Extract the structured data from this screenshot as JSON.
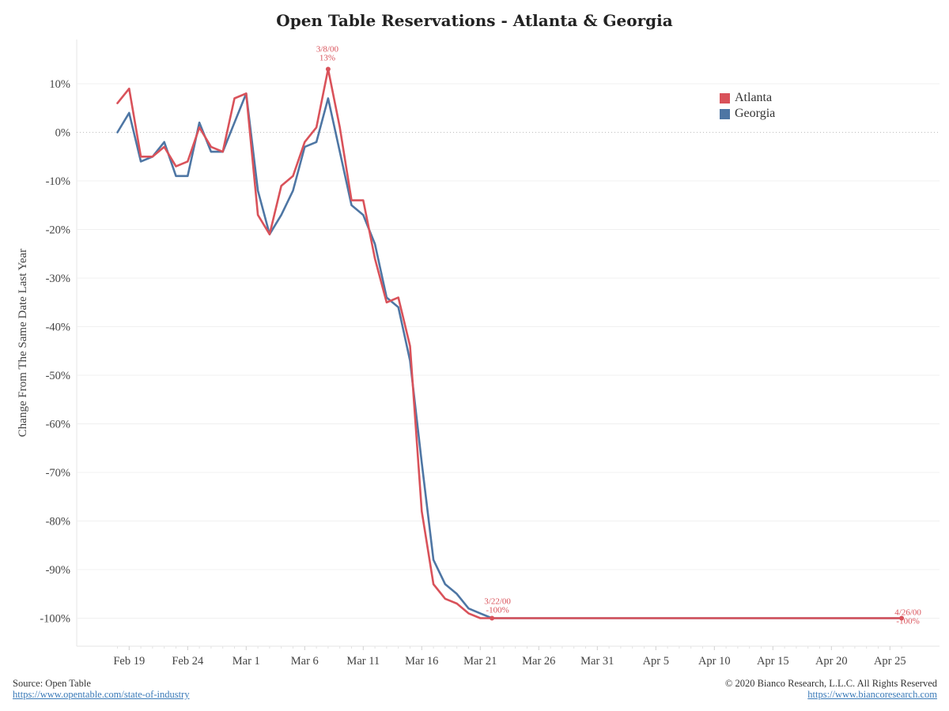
{
  "chart_data": {
    "type": "line",
    "title": "Open Table Reservations - Atlanta & Georgia",
    "ylabel": "Change From The Same Date Last Year",
    "xlabel": "",
    "ylim": [
      -106,
      18
    ],
    "yticks": [
      10,
      0,
      -10,
      -20,
      -30,
      -40,
      -50,
      -60,
      -70,
      -80,
      -90,
      -100
    ],
    "ytick_labels": [
      "10%",
      "0%",
      "-10%",
      "-20%",
      "-30%",
      "-40%",
      "-50%",
      "-60%",
      "-70%",
      "-80%",
      "-90%",
      "-100%"
    ],
    "xticks": [
      "Feb 19",
      "Feb 24",
      "Mar 1",
      "Mar 6",
      "Mar 11",
      "Mar 16",
      "Mar 21",
      "Mar 26",
      "Mar 31",
      "Apr 5",
      "Apr 10",
      "Apr 15",
      "Apr 20",
      "Apr 25"
    ],
    "x_start": "Feb 18",
    "x_end": "Apr 26",
    "grid": "horizontal",
    "legend_position": "top-right",
    "series": [
      {
        "name": "Atlanta",
        "color": "#d9525a",
        "values": [
          6,
          9,
          -5,
          -5,
          -3,
          -7,
          -6,
          1,
          -3,
          -4,
          7,
          8,
          -17,
          -21,
          -11,
          -9,
          -2,
          1,
          13,
          1,
          -14,
          -14,
          -26,
          -35,
          -34,
          -44,
          -78,
          -93,
          -96,
          -97,
          -99,
          -100,
          -100,
          -100,
          -100,
          -100,
          -100,
          -100,
          -100,
          -100,
          -100,
          -100,
          -100,
          -100,
          -100,
          -100,
          -100,
          -100,
          -100,
          -100,
          -100,
          -100,
          -100,
          -100,
          -100,
          -100,
          -100,
          -100,
          -100,
          -100,
          -100,
          -100,
          -100,
          -100,
          -100,
          -100,
          -100,
          -100
        ]
      },
      {
        "name": "Georgia",
        "color": "#4e76a4",
        "values": [
          0,
          4,
          -6,
          -5,
          -2,
          -9,
          -9,
          2,
          -4,
          -4,
          2,
          8,
          -12,
          -21,
          -17,
          -12,
          -3,
          -2,
          7,
          -4,
          -15,
          -17,
          -23,
          -34,
          -36,
          -47,
          -68,
          -88,
          -93,
          -95,
          -98,
          -99,
          -100,
          -100,
          -100,
          -100,
          -100,
          -100,
          -100,
          -100,
          -100,
          -100,
          -100,
          -100,
          -100,
          -100,
          -100,
          -100,
          -100,
          -100,
          -100,
          -100,
          -100,
          -100,
          -100,
          -100,
          -100,
          -100,
          -100,
          -100,
          -100,
          -100,
          -100,
          -100,
          -100,
          -100,
          -100,
          -100
        ]
      }
    ],
    "annotations": [
      {
        "series": "Atlanta",
        "date": "3/8/00",
        "value_label": "13%",
        "color": "#d9525a"
      },
      {
        "series": "Georgia",
        "date": "3/22/00",
        "value_label": "-100%",
        "color": "#d9525a"
      },
      {
        "series": "Atlanta",
        "date": "4/26/00",
        "value_label": "-100%",
        "color": "#d9525a"
      }
    ]
  },
  "footer": {
    "source": "Source: Open Table",
    "source_url": "https://www.opentable.com/state-of-industry",
    "copyright": "© 2020 Bianco Research, L.L.C. All Rights Reserved",
    "site_url": "https://www.biancoresearch.com"
  }
}
